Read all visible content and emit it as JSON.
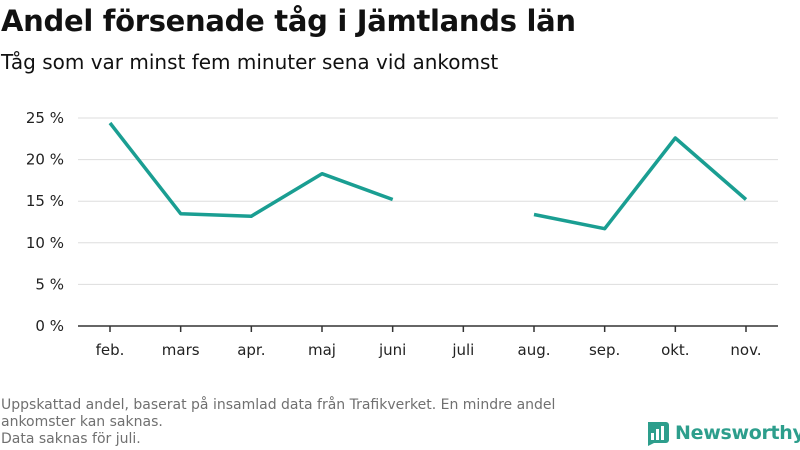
{
  "title": "Andel försenade tåg i Jämtlands län",
  "subtitle": "Tåg som var minst fem minuter sena vid ankomst",
  "footer": {
    "line1": "Uppskattad andel, baserat på insamlad data från Trafikverket. En mindre andel",
    "line2": "ankomster kan saknas.",
    "line3": "Data saknas för juli."
  },
  "brand": {
    "name": "Newsworthy",
    "icon": "bar-chart-logo-icon",
    "color": "#2d9e8c"
  },
  "chart_data": {
    "type": "line",
    "categories": [
      "feb.",
      "mars",
      "apr.",
      "maj",
      "juni",
      "juli",
      "aug.",
      "sep.",
      "okt.",
      "nov."
    ],
    "series": [
      {
        "values": [
          24.4,
          13.5,
          13.2,
          18.3,
          15.2,
          null,
          13.4,
          11.7,
          22.6,
          15.2
        ],
        "color": "#1a9e92"
      }
    ],
    "yticks": [
      "0 %",
      "5 %",
      "10 %",
      "15 %",
      "20 %",
      "25 %"
    ],
    "ytick_values": [
      0,
      5,
      10,
      15,
      20,
      25
    ],
    "ylim": [
      0,
      25
    ],
    "grid": true
  }
}
